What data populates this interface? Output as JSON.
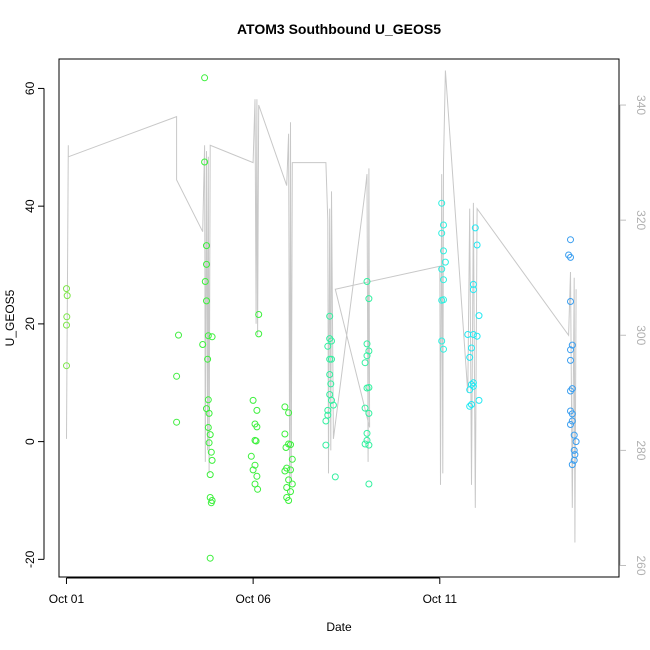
{
  "chart_data": {
    "type": "scatter",
    "title": "ATOM3 Southbound U_GEOS5",
    "xlabel": "Date",
    "ylabel": "U_GEOS5",
    "x_unit": "day of October",
    "xlim": [
      0.8,
      15.8
    ],
    "ylim": [
      -23,
      65
    ],
    "y_ticks": [
      -20,
      0,
      20,
      40,
      60
    ],
    "x_ticks": [
      {
        "value": 1,
        "label": "Oct 01"
      },
      {
        "value": 6,
        "label": "Oct 06"
      },
      {
        "value": 11,
        "label": "Oct 11"
      }
    ],
    "y2_label": "",
    "y2lim": [
      258,
      348
    ],
    "y2_ticks": [
      260,
      280,
      300,
      320,
      340
    ],
    "y2_color": "#bfbfbf",
    "points_color_scale": "green → cyan → blue by date",
    "series": [
      {
        "kind": "points",
        "values": [
          {
            "x": 1.0,
            "y": 26,
            "color": "#7ee64a"
          },
          {
            "x": 1.02,
            "y": 24.8,
            "color": "#7ee64a"
          },
          {
            "x": 1.01,
            "y": 21.2,
            "color": "#7ee64a"
          },
          {
            "x": 1.0,
            "y": 19.8,
            "color": "#7ee64a"
          },
          {
            "x": 1.0,
            "y": 12.9,
            "color": "#7ee64a"
          },
          {
            "x": 4.0,
            "y": 18.1,
            "color": "#44ee44"
          },
          {
            "x": 3.95,
            "y": 11.1,
            "color": "#44ee44"
          },
          {
            "x": 3.95,
            "y": 3.3,
            "color": "#44ee44"
          },
          {
            "x": 4.7,
            "y": 61.8,
            "color": "#3cf03c"
          },
          {
            "x": 4.7,
            "y": 47.5,
            "color": "#3cf03c"
          },
          {
            "x": 4.75,
            "y": 33.3,
            "color": "#3cf03c"
          },
          {
            "x": 4.75,
            "y": 30.1,
            "color": "#3cf03c"
          },
          {
            "x": 4.72,
            "y": 27.2,
            "color": "#3cf03c"
          },
          {
            "x": 4.75,
            "y": 23.9,
            "color": "#3cf03c"
          },
          {
            "x": 4.8,
            "y": 18.0,
            "color": "#3cf03c"
          },
          {
            "x": 4.9,
            "y": 17.8,
            "color": "#3cf03c"
          },
          {
            "x": 4.65,
            "y": 16.5,
            "color": "#3cf03c"
          },
          {
            "x": 4.78,
            "y": 14.0,
            "color": "#3cf03c"
          },
          {
            "x": 4.8,
            "y": 7.1,
            "color": "#3cf03c"
          },
          {
            "x": 4.75,
            "y": 5.6,
            "color": "#3cf03c"
          },
          {
            "x": 4.82,
            "y": 4.8,
            "color": "#3cf03c"
          },
          {
            "x": 4.8,
            "y": 2.4,
            "color": "#3cf03c"
          },
          {
            "x": 4.85,
            "y": 1.2,
            "color": "#3cf03c"
          },
          {
            "x": 4.82,
            "y": -0.2,
            "color": "#3cf03c"
          },
          {
            "x": 4.88,
            "y": -1.8,
            "color": "#3cf03c"
          },
          {
            "x": 4.9,
            "y": -3.2,
            "color": "#3cf03c"
          },
          {
            "x": 4.85,
            "y": -5.6,
            "color": "#3cf03c"
          },
          {
            "x": 4.85,
            "y": -9.5,
            "color": "#3cf03c"
          },
          {
            "x": 4.9,
            "y": -10.0,
            "color": "#3cf03c"
          },
          {
            "x": 4.88,
            "y": -10.4,
            "color": "#3cf03c"
          },
          {
            "x": 4.85,
            "y": -19.8,
            "color": "#3cf03c"
          },
          {
            "x": 6.15,
            "y": 21.6,
            "color": "#3cf03c"
          },
          {
            "x": 6.15,
            "y": 18.3,
            "color": "#3cf03c"
          },
          {
            "x": 6.0,
            "y": 7.0,
            "color": "#3cf03c"
          },
          {
            "x": 6.1,
            "y": 5.3,
            "color": "#3cf03c"
          },
          {
            "x": 6.05,
            "y": 3.0,
            "color": "#3cf03c"
          },
          {
            "x": 6.1,
            "y": 2.5,
            "color": "#3cf03c"
          },
          {
            "x": 6.05,
            "y": 0.2,
            "color": "#3cf03c"
          },
          {
            "x": 6.08,
            "y": 0.1,
            "color": "#3cf03c"
          },
          {
            "x": 5.95,
            "y": -2.5,
            "color": "#3cf03c"
          },
          {
            "x": 6.05,
            "y": -4.0,
            "color": "#3cf03c"
          },
          {
            "x": 6.0,
            "y": -4.8,
            "color": "#3cf03c"
          },
          {
            "x": 6.1,
            "y": -5.9,
            "color": "#3cf03c"
          },
          {
            "x": 6.05,
            "y": -7.2,
            "color": "#3cf03c"
          },
          {
            "x": 6.12,
            "y": -8.1,
            "color": "#3cf03c"
          },
          {
            "x": 6.85,
            "y": 5.9,
            "color": "#3cf03c"
          },
          {
            "x": 6.95,
            "y": 4.9,
            "color": "#3cf03c"
          },
          {
            "x": 6.85,
            "y": 1.3,
            "color": "#3cf03c"
          },
          {
            "x": 6.95,
            "y": -0.4,
            "color": "#3cf03c"
          },
          {
            "x": 7.0,
            "y": -0.5,
            "color": "#3cf03c"
          },
          {
            "x": 6.88,
            "y": -1.0,
            "color": "#3cf03c"
          },
          {
            "x": 7.05,
            "y": -3.0,
            "color": "#3cf03c"
          },
          {
            "x": 6.9,
            "y": -4.5,
            "color": "#3cf03c"
          },
          {
            "x": 7.0,
            "y": -4.8,
            "color": "#3cf03c"
          },
          {
            "x": 6.85,
            "y": -5.0,
            "color": "#3cf03c"
          },
          {
            "x": 6.95,
            "y": -6.5,
            "color": "#3cf03c"
          },
          {
            "x": 7.05,
            "y": -7.2,
            "color": "#3cf03c"
          },
          {
            "x": 6.9,
            "y": -7.8,
            "color": "#3cf03c"
          },
          {
            "x": 7.0,
            "y": -8.5,
            "color": "#3cf03c"
          },
          {
            "x": 6.9,
            "y": -9.5,
            "color": "#3cf03c"
          },
          {
            "x": 6.95,
            "y": -10.0,
            "color": "#3cf03c"
          },
          {
            "x": 8.05,
            "y": 21.3,
            "color": "#33f0a0"
          },
          {
            "x": 8.05,
            "y": 17.5,
            "color": "#33f0a0"
          },
          {
            "x": 8.1,
            "y": 17.1,
            "color": "#33f0a0"
          },
          {
            "x": 8.0,
            "y": 16.2,
            "color": "#33f0a0"
          },
          {
            "x": 8.05,
            "y": 14.0,
            "color": "#33f0a0"
          },
          {
            "x": 8.1,
            "y": 14.0,
            "color": "#33f0a0"
          },
          {
            "x": 8.05,
            "y": 11.4,
            "color": "#33f0a0"
          },
          {
            "x": 8.08,
            "y": 9.8,
            "color": "#33f0a0"
          },
          {
            "x": 8.05,
            "y": 8.0,
            "color": "#33f0a0"
          },
          {
            "x": 8.1,
            "y": 7.0,
            "color": "#33f0a0"
          },
          {
            "x": 8.15,
            "y": 6.2,
            "color": "#33f0a0"
          },
          {
            "x": 8.0,
            "y": 5.3,
            "color": "#33f0a0"
          },
          {
            "x": 8.0,
            "y": 4.5,
            "color": "#33f0a0"
          },
          {
            "x": 7.95,
            "y": 3.5,
            "color": "#33f0a0"
          },
          {
            "x": 7.95,
            "y": -0.6,
            "color": "#33f0a0"
          },
          {
            "x": 8.2,
            "y": -6.0,
            "color": "#33f0a0"
          },
          {
            "x": 9.05,
            "y": 27.2,
            "color": "#33f0a0"
          },
          {
            "x": 9.1,
            "y": 24.3,
            "color": "#33f0a0"
          },
          {
            "x": 9.05,
            "y": 16.6,
            "color": "#33f0a0"
          },
          {
            "x": 9.1,
            "y": 15.4,
            "color": "#33f0a0"
          },
          {
            "x": 9.05,
            "y": 14.6,
            "color": "#33f0a0"
          },
          {
            "x": 9.0,
            "y": 13.4,
            "color": "#33f0a0"
          },
          {
            "x": 9.05,
            "y": 9.1,
            "color": "#33f0a0"
          },
          {
            "x": 9.1,
            "y": 9.2,
            "color": "#33f0a0"
          },
          {
            "x": 9.0,
            "y": 5.7,
            "color": "#33f0a0"
          },
          {
            "x": 9.1,
            "y": 4.8,
            "color": "#33f0a0"
          },
          {
            "x": 9.05,
            "y": 1.4,
            "color": "#33f0a0"
          },
          {
            "x": 9.05,
            "y": 0.2,
            "color": "#33f0a0"
          },
          {
            "x": 9.1,
            "y": -0.6,
            "color": "#33f0a0"
          },
          {
            "x": 9.0,
            "y": -0.4,
            "color": "#33f0a0"
          },
          {
            "x": 9.1,
            "y": -7.2,
            "color": "#33f0a0"
          },
          {
            "x": 11.05,
            "y": 40.5,
            "color": "#2ef0e0"
          },
          {
            "x": 11.1,
            "y": 36.8,
            "color": "#2ef0e0"
          },
          {
            "x": 11.05,
            "y": 35.4,
            "color": "#2ef0e0"
          },
          {
            "x": 11.1,
            "y": 32.4,
            "color": "#2ef0e0"
          },
          {
            "x": 11.15,
            "y": 30.5,
            "color": "#2ef0e0"
          },
          {
            "x": 11.05,
            "y": 29.3,
            "color": "#2ef0e0"
          },
          {
            "x": 11.1,
            "y": 27.5,
            "color": "#2ef0e0"
          },
          {
            "x": 11.05,
            "y": 24.0,
            "color": "#2ef0e0"
          },
          {
            "x": 11.1,
            "y": 24.1,
            "color": "#2ef0e0"
          },
          {
            "x": 11.05,
            "y": 17.1,
            "color": "#2ef0e0"
          },
          {
            "x": 11.1,
            "y": 15.7,
            "color": "#2ef0e0"
          },
          {
            "x": 11.95,
            "y": 36.3,
            "color": "#22e8f2"
          },
          {
            "x": 12.0,
            "y": 33.4,
            "color": "#22e8f2"
          },
          {
            "x": 11.9,
            "y": 26.7,
            "color": "#22e8f2"
          },
          {
            "x": 11.9,
            "y": 25.8,
            "color": "#22e8f2"
          },
          {
            "x": 12.05,
            "y": 21.4,
            "color": "#22e8f2"
          },
          {
            "x": 11.75,
            "y": 18.2,
            "color": "#22e8f2"
          },
          {
            "x": 11.9,
            "y": 18.2,
            "color": "#22e8f2"
          },
          {
            "x": 12.0,
            "y": 17.9,
            "color": "#22e8f2"
          },
          {
            "x": 11.85,
            "y": 15.9,
            "color": "#22e8f2"
          },
          {
            "x": 11.8,
            "y": 14.3,
            "color": "#22e8f2"
          },
          {
            "x": 11.9,
            "y": 10.0,
            "color": "#22e8f2"
          },
          {
            "x": 11.85,
            "y": 9.7,
            "color": "#22e8f2"
          },
          {
            "x": 11.9,
            "y": 9.4,
            "color": "#22e8f2"
          },
          {
            "x": 11.8,
            "y": 8.8,
            "color": "#22e8f2"
          },
          {
            "x": 12.05,
            "y": 7.0,
            "color": "#22e8f2"
          },
          {
            "x": 11.85,
            "y": 6.3,
            "color": "#22e8f2"
          },
          {
            "x": 11.8,
            "y": 6.0,
            "color": "#22e8f2"
          },
          {
            "x": 14.5,
            "y": 34.3,
            "color": "#3a9ef0"
          },
          {
            "x": 14.45,
            "y": 31.7,
            "color": "#3a9ef0"
          },
          {
            "x": 14.5,
            "y": 31.3,
            "color": "#3a9ef0"
          },
          {
            "x": 14.5,
            "y": 23.8,
            "color": "#3a9ef0"
          },
          {
            "x": 14.55,
            "y": 16.4,
            "color": "#3a9ef0"
          },
          {
            "x": 14.5,
            "y": 15.6,
            "color": "#3a9ef0"
          },
          {
            "x": 14.5,
            "y": 13.8,
            "color": "#3a9ef0"
          },
          {
            "x": 14.55,
            "y": 9.0,
            "color": "#3a9ef0"
          },
          {
            "x": 14.5,
            "y": 8.6,
            "color": "#3a9ef0"
          },
          {
            "x": 14.5,
            "y": 5.2,
            "color": "#3a9ef0"
          },
          {
            "x": 14.55,
            "y": 4.7,
            "color": "#3a9ef0"
          },
          {
            "x": 14.55,
            "y": 3.5,
            "color": "#3a9ef0"
          },
          {
            "x": 14.5,
            "y": 2.9,
            "color": "#3a9ef0"
          },
          {
            "x": 14.6,
            "y": 1.1,
            "color": "#3a9ef0"
          },
          {
            "x": 14.65,
            "y": 0.0,
            "color": "#3a9ef0"
          },
          {
            "x": 14.6,
            "y": -1.5,
            "color": "#3a9ef0"
          },
          {
            "x": 14.62,
            "y": -2.2,
            "color": "#3a9ef0"
          },
          {
            "x": 14.6,
            "y": -3.2,
            "color": "#3a9ef0"
          },
          {
            "x": 14.55,
            "y": -3.9,
            "color": "#3a9ef0"
          }
        ]
      },
      {
        "kind": "line",
        "axis": "right",
        "color": "#c8c8c8",
        "values": [
          [
            1.0,
            282
          ],
          [
            1.05,
            333
          ],
          [
            1.05,
            331
          ],
          [
            3.95,
            338
          ],
          [
            3.95,
            327
          ],
          [
            4.65,
            318
          ],
          [
            4.7,
            333
          ],
          [
            4.72,
            278
          ],
          [
            4.75,
            332
          ],
          [
            4.78,
            280
          ],
          [
            4.8,
            331
          ],
          [
            4.82,
            276
          ],
          [
            4.85,
            333
          ],
          [
            6.0,
            330
          ],
          [
            6.05,
            341
          ],
          [
            6.08,
            302
          ],
          [
            6.1,
            341
          ],
          [
            6.12,
            300
          ],
          [
            6.15,
            340
          ],
          [
            6.9,
            326
          ],
          [
            6.95,
            335
          ],
          [
            6.98,
            272
          ],
          [
            7.0,
            337
          ],
          [
            7.02,
            274
          ],
          [
            7.05,
            330
          ],
          [
            7.95,
            330
          ],
          [
            8.0,
            320
          ],
          [
            8.02,
            276
          ],
          [
            8.05,
            322
          ],
          [
            8.08,
            280
          ],
          [
            8.1,
            325
          ],
          [
            8.15,
            282
          ],
          [
            9.0,
            325
          ],
          [
            9.05,
            328
          ],
          [
            9.08,
            278
          ],
          [
            9.1,
            329
          ],
          [
            9.12,
            284
          ],
          [
            8.2,
            308
          ],
          [
            11.0,
            312
          ],
          [
            11.02,
            274
          ],
          [
            11.05,
            328
          ],
          [
            11.08,
            276
          ],
          [
            11.1,
            330
          ],
          [
            11.15,
            346
          ],
          [
            11.75,
            290
          ],
          [
            11.8,
            322
          ],
          [
            11.85,
            274
          ],
          [
            11.9,
            323
          ],
          [
            11.95,
            270
          ],
          [
            12.0,
            322
          ],
          [
            14.45,
            300
          ],
          [
            14.5,
            311
          ],
          [
            14.55,
            270
          ],
          [
            14.6,
            310
          ],
          [
            14.62,
            264
          ],
          [
            14.65,
            308
          ]
        ]
      }
    ]
  }
}
